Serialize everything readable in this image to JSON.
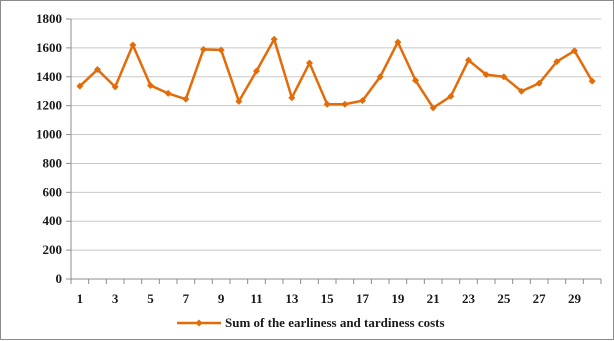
{
  "chart_data": {
    "type": "line",
    "title": "",
    "xlabel": "",
    "ylabel": "",
    "x": [
      1,
      2,
      3,
      4,
      5,
      6,
      7,
      8,
      9,
      10,
      11,
      12,
      13,
      14,
      15,
      16,
      17,
      18,
      19,
      20,
      21,
      22,
      23,
      24,
      25,
      26,
      27,
      28,
      29,
      30
    ],
    "x_tick_labels": [
      "1",
      "3",
      "5",
      "7",
      "9",
      "11",
      "13",
      "15",
      "17",
      "19",
      "21",
      "23",
      "25",
      "27",
      "29"
    ],
    "y_tick_labels": [
      "0",
      "200",
      "400",
      "600",
      "800",
      "1000",
      "1200",
      "1400",
      "1600",
      "1800"
    ],
    "ylim": [
      0,
      1800
    ],
    "grid": "horizontal",
    "legend_position": "bottom",
    "series": [
      {
        "name": "Sum of the earliness and tardiness costs",
        "color": "#e36c09",
        "marker": "diamond",
        "values": [
          1335,
          1450,
          1330,
          1620,
          1340,
          1285,
          1245,
          1590,
          1585,
          1230,
          1440,
          1660,
          1255,
          1495,
          1210,
          1210,
          1235,
          1400,
          1640,
          1375,
          1185,
          1265,
          1515,
          1415,
          1400,
          1300,
          1355,
          1505,
          1580,
          1370
        ]
      }
    ]
  }
}
